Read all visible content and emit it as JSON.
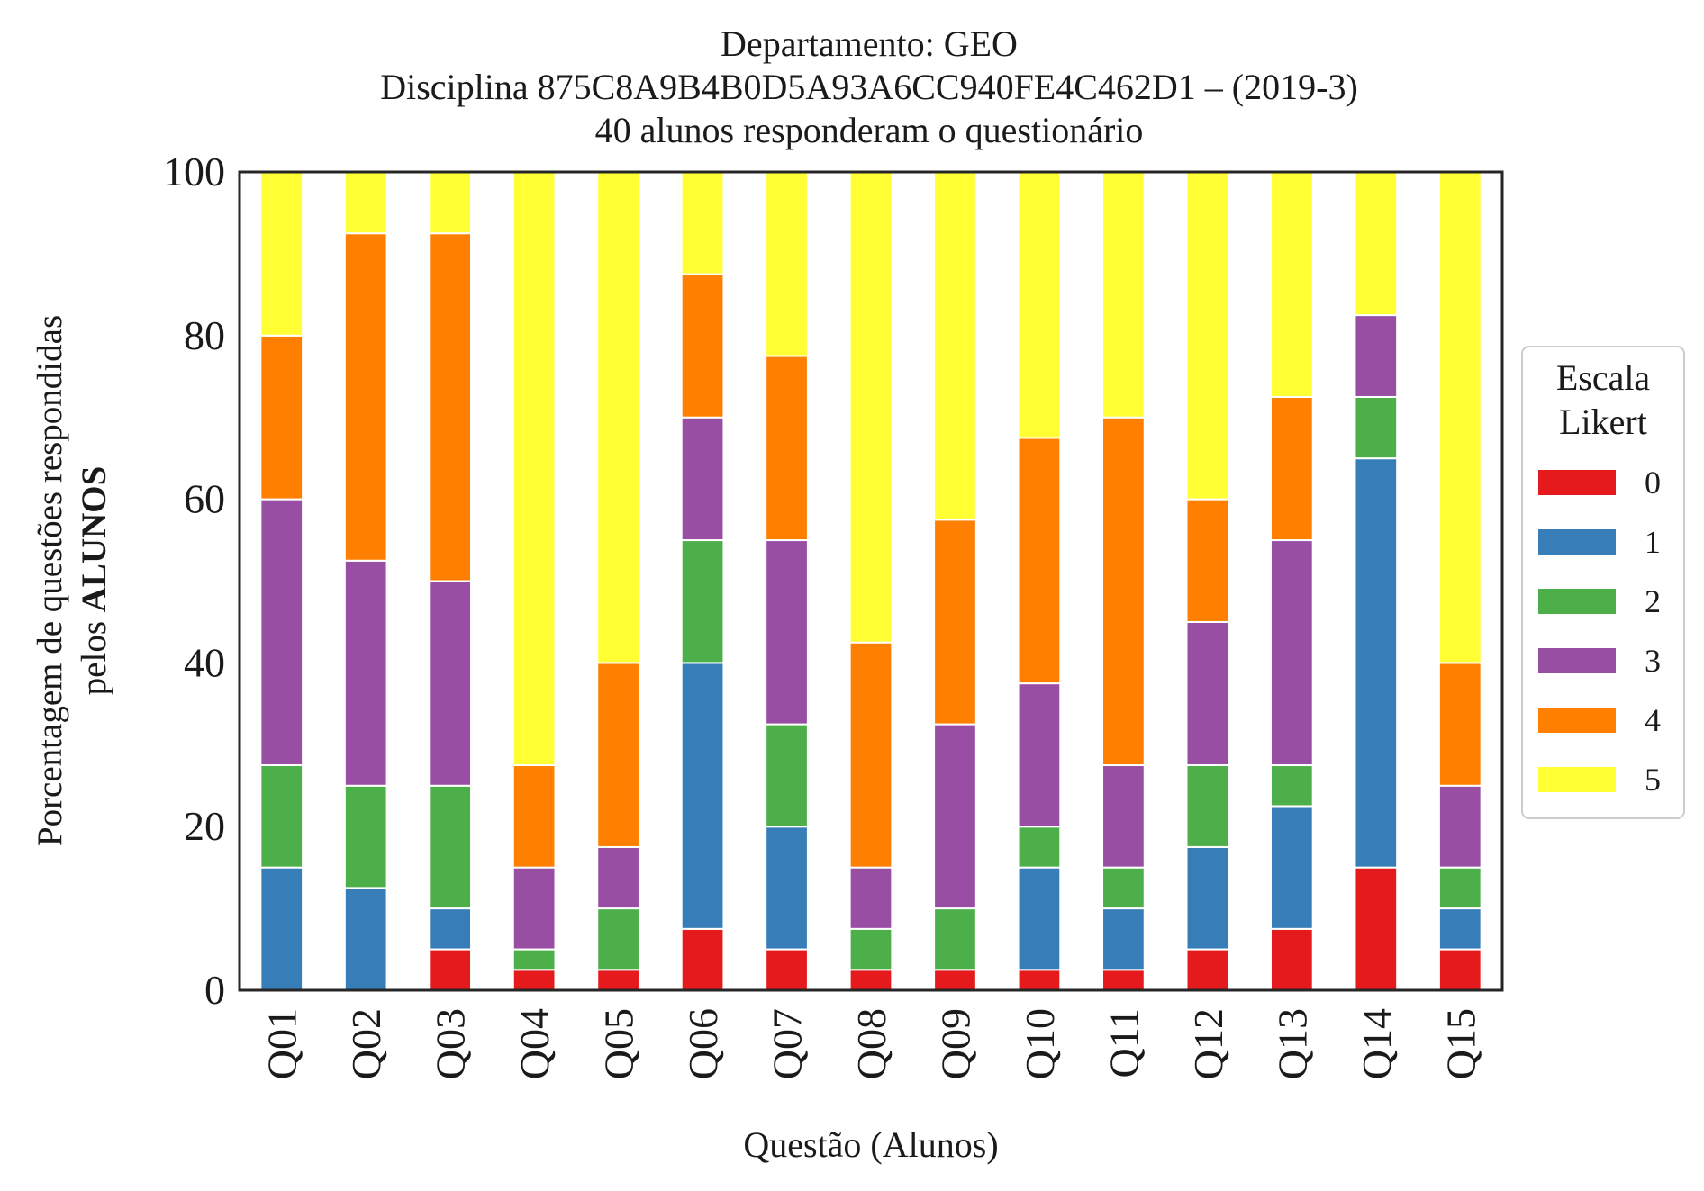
{
  "chart_data": {
    "type": "bar",
    "stacked": true,
    "title_lines": [
      "Departamento: GEO",
      "Disciplina 875C8A9B4B0D5A93A6CC940FE4C462D1 – (2019-3)",
      "40 alunos responderam o questionário"
    ],
    "xlabel": "Questão (Alunos)",
    "ylabel_line1": "Porcentagem de questões respondidas",
    "ylabel_line2_prefix": "pelos ",
    "ylabel_line2_bold": "ALUNOS",
    "ylim": [
      0,
      100
    ],
    "yticks": [
      0,
      20,
      40,
      60,
      80,
      100
    ],
    "grid": false,
    "legend_position": "right",
    "legend_title_lines": [
      "Escala",
      "Likert"
    ],
    "categories": [
      "Q01",
      "Q02",
      "Q03",
      "Q04",
      "Q05",
      "Q06",
      "Q07",
      "Q08",
      "Q09",
      "Q10",
      "Q11",
      "Q12",
      "Q13",
      "Q14",
      "Q15"
    ],
    "series": [
      {
        "name": "0",
        "color": "#e41a1c",
        "values": [
          0,
          0,
          5,
          2.5,
          2.5,
          7.5,
          5,
          2.5,
          2.5,
          2.5,
          2.5,
          5,
          7.5,
          15,
          5
        ]
      },
      {
        "name": "1",
        "color": "#377eb8",
        "values": [
          15,
          12.5,
          5,
          0,
          0,
          32.5,
          15,
          0,
          0,
          12.5,
          7.5,
          12.5,
          15,
          50,
          5
        ]
      },
      {
        "name": "2",
        "color": "#4daf4a",
        "values": [
          12.5,
          12.5,
          15,
          2.5,
          7.5,
          15,
          12.5,
          5,
          7.5,
          5,
          5,
          10,
          5,
          7.5,
          5
        ]
      },
      {
        "name": "3",
        "color": "#984ea3",
        "values": [
          32.5,
          27.5,
          25,
          10,
          7.5,
          15,
          22.5,
          7.5,
          22.5,
          17.5,
          12.5,
          17.5,
          27.5,
          10,
          10
        ]
      },
      {
        "name": "4",
        "color": "#ff7f00",
        "values": [
          20,
          40,
          42.5,
          12.5,
          22.5,
          17.5,
          22.5,
          27.5,
          25,
          30,
          42.5,
          15,
          17.5,
          0,
          15
        ]
      },
      {
        "name": "5",
        "color": "#ffff33",
        "values": [
          20,
          7.5,
          7.5,
          72.5,
          60,
          12.5,
          22.5,
          57.5,
          42.5,
          32.5,
          30,
          40,
          27.5,
          17.5,
          60
        ]
      }
    ]
  }
}
